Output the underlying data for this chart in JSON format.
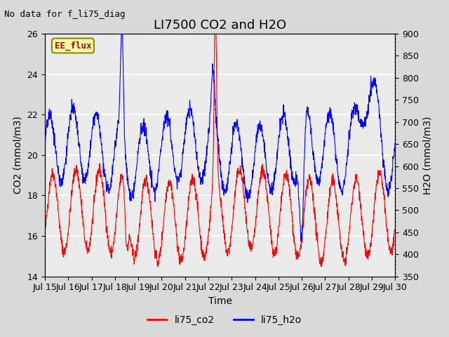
{
  "title": "LI7500 CO2 and H2O",
  "subtitle": "No data for f_li75_diag",
  "xlabel": "Time",
  "ylabel_left": "CO2 (mmol/m3)",
  "ylabel_right": "H2O (mmol/m3)",
  "ylim_left": [
    14,
    26
  ],
  "ylim_right": [
    350,
    900
  ],
  "yticks_left": [
    14,
    16,
    18,
    20,
    22,
    24,
    26
  ],
  "yticks_right": [
    350,
    400,
    450,
    500,
    550,
    600,
    650,
    700,
    750,
    800,
    850,
    900
  ],
  "xtick_labels": [
    "Jul 15",
    "Jul 16",
    "Jul 17",
    "Jul 18",
    "Jul 19",
    "Jul 20",
    "Jul 21",
    "Jul 22",
    "Jul 23",
    "Jul 24",
    "Jul 25",
    "Jul 26",
    "Jul 27",
    "Jul 28",
    "Jul 29",
    "Jul 30"
  ],
  "legend_labels": [
    "li75_co2",
    "li75_h2o"
  ],
  "line_colors": [
    "#ff0000",
    "#0000ff"
  ],
  "fig_bg_color": "#d9d9d9",
  "plot_bg_color": "#ebebeb",
  "grid_color": "#ffffff",
  "ee_flux_box_color": "#ffffaa",
  "ee_flux_text_color": "#aa0000",
  "title_fontsize": 13,
  "label_fontsize": 10,
  "tick_fontsize": 9,
  "ee_flux_label": "EE_flux"
}
